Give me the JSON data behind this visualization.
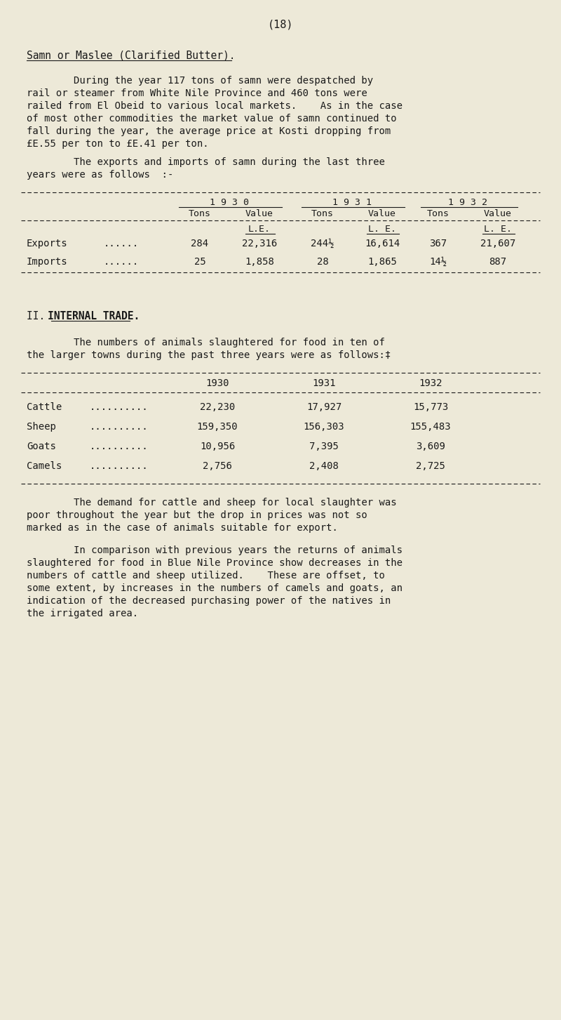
{
  "bg_color": "#ede9d8",
  "text_color": "#1a1a1a",
  "page_number": "(18)",
  "section_title": "Samn or Maslee (Clarified Butter).",
  "para1_lines": [
    "        During the year 117 tons of samn were despatched by",
    "rail or steamer from White Nile Province and 460 tons were",
    "railed from El Obeid to various local markets.    As in the case",
    "of most other commodities the market value of samn continued to",
    "fall during the year, the average price at Kosti dropping from",
    "£E.55 per ton to £E.41 per ton."
  ],
  "para2_lines": [
    "        The exports and imports of samn during the last three",
    "years were as follows  :-"
  ],
  "section2_title_part1": "II.  ",
  "section2_title_part2": "INTERNAL TRADE.",
  "para3_lines": [
    "        The numbers of animals slaughtered for food in ten of",
    "the larger towns during the past three years were as follows:‡"
  ],
  "para4_lines": [
    "        The demand for cattle and sheep for local slaughter was",
    "poor throughout the year but the drop in prices was not so",
    "marked as in the case of animals suitable for export."
  ],
  "para5_lines": [
    "        In comparison with previous years the returns of animals",
    "slaughtered for food in Blue Nile Province show decreases in the",
    "numbers of cattle and sheep utilized.    These are offset, to",
    "some extent, by increases in the numbers of camels and goats, an",
    "indication of the decreased purchasing power of the natives in",
    "the irrigated area."
  ]
}
